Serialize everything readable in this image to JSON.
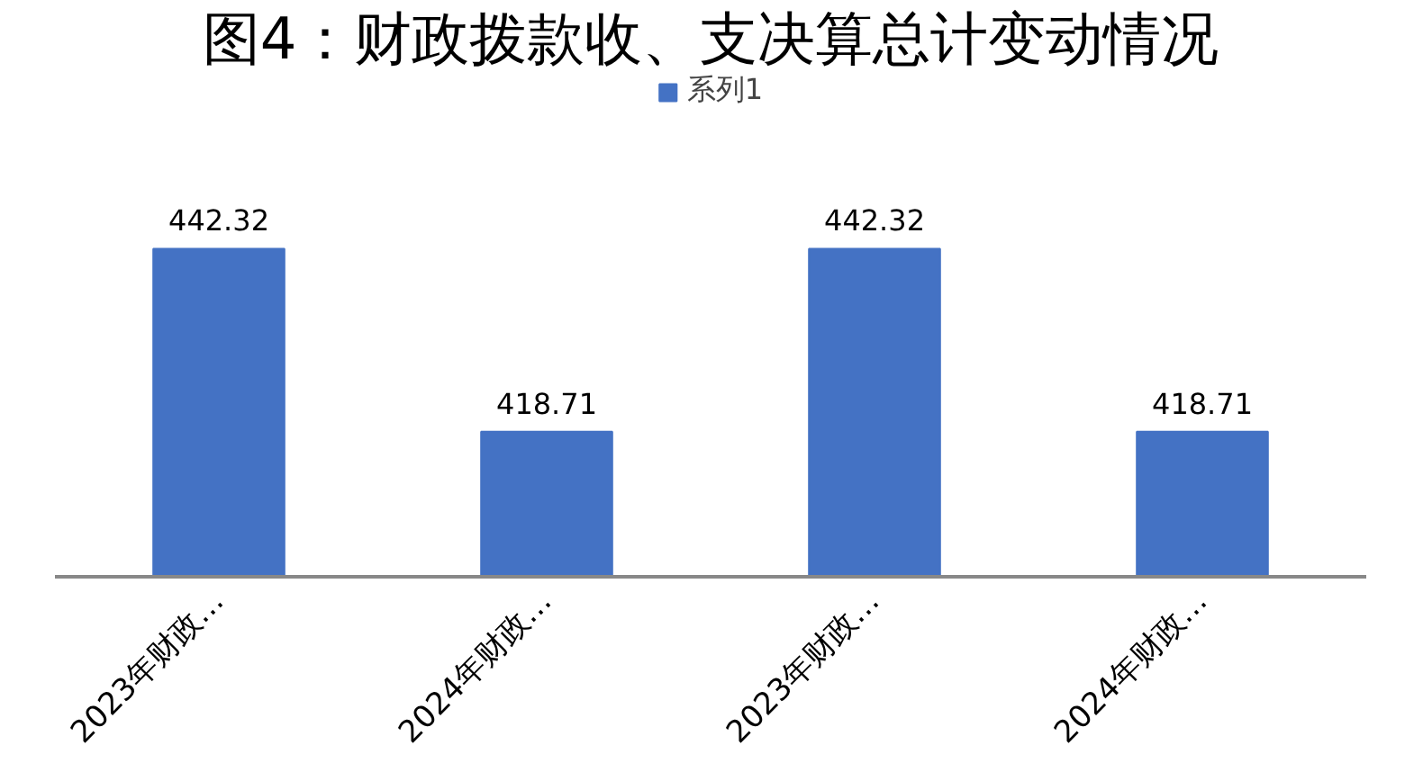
{
  "chart_data": {
    "type": "bar",
    "title": "图4：财政拨款收、支决算总计变动情况",
    "categories": [
      "2023年财政…",
      "2024年财政…",
      "2023年财政…",
      "2024年财政…"
    ],
    "series": [
      {
        "name": "系列1",
        "color": "#4472c4",
        "values": [
          442.32,
          418.71,
          442.32,
          418.71
        ]
      }
    ],
    "ylim": [
      400,
      465
    ],
    "data_labels": true,
    "legend": "top",
    "grid": false,
    "tick_labels": "x"
  }
}
